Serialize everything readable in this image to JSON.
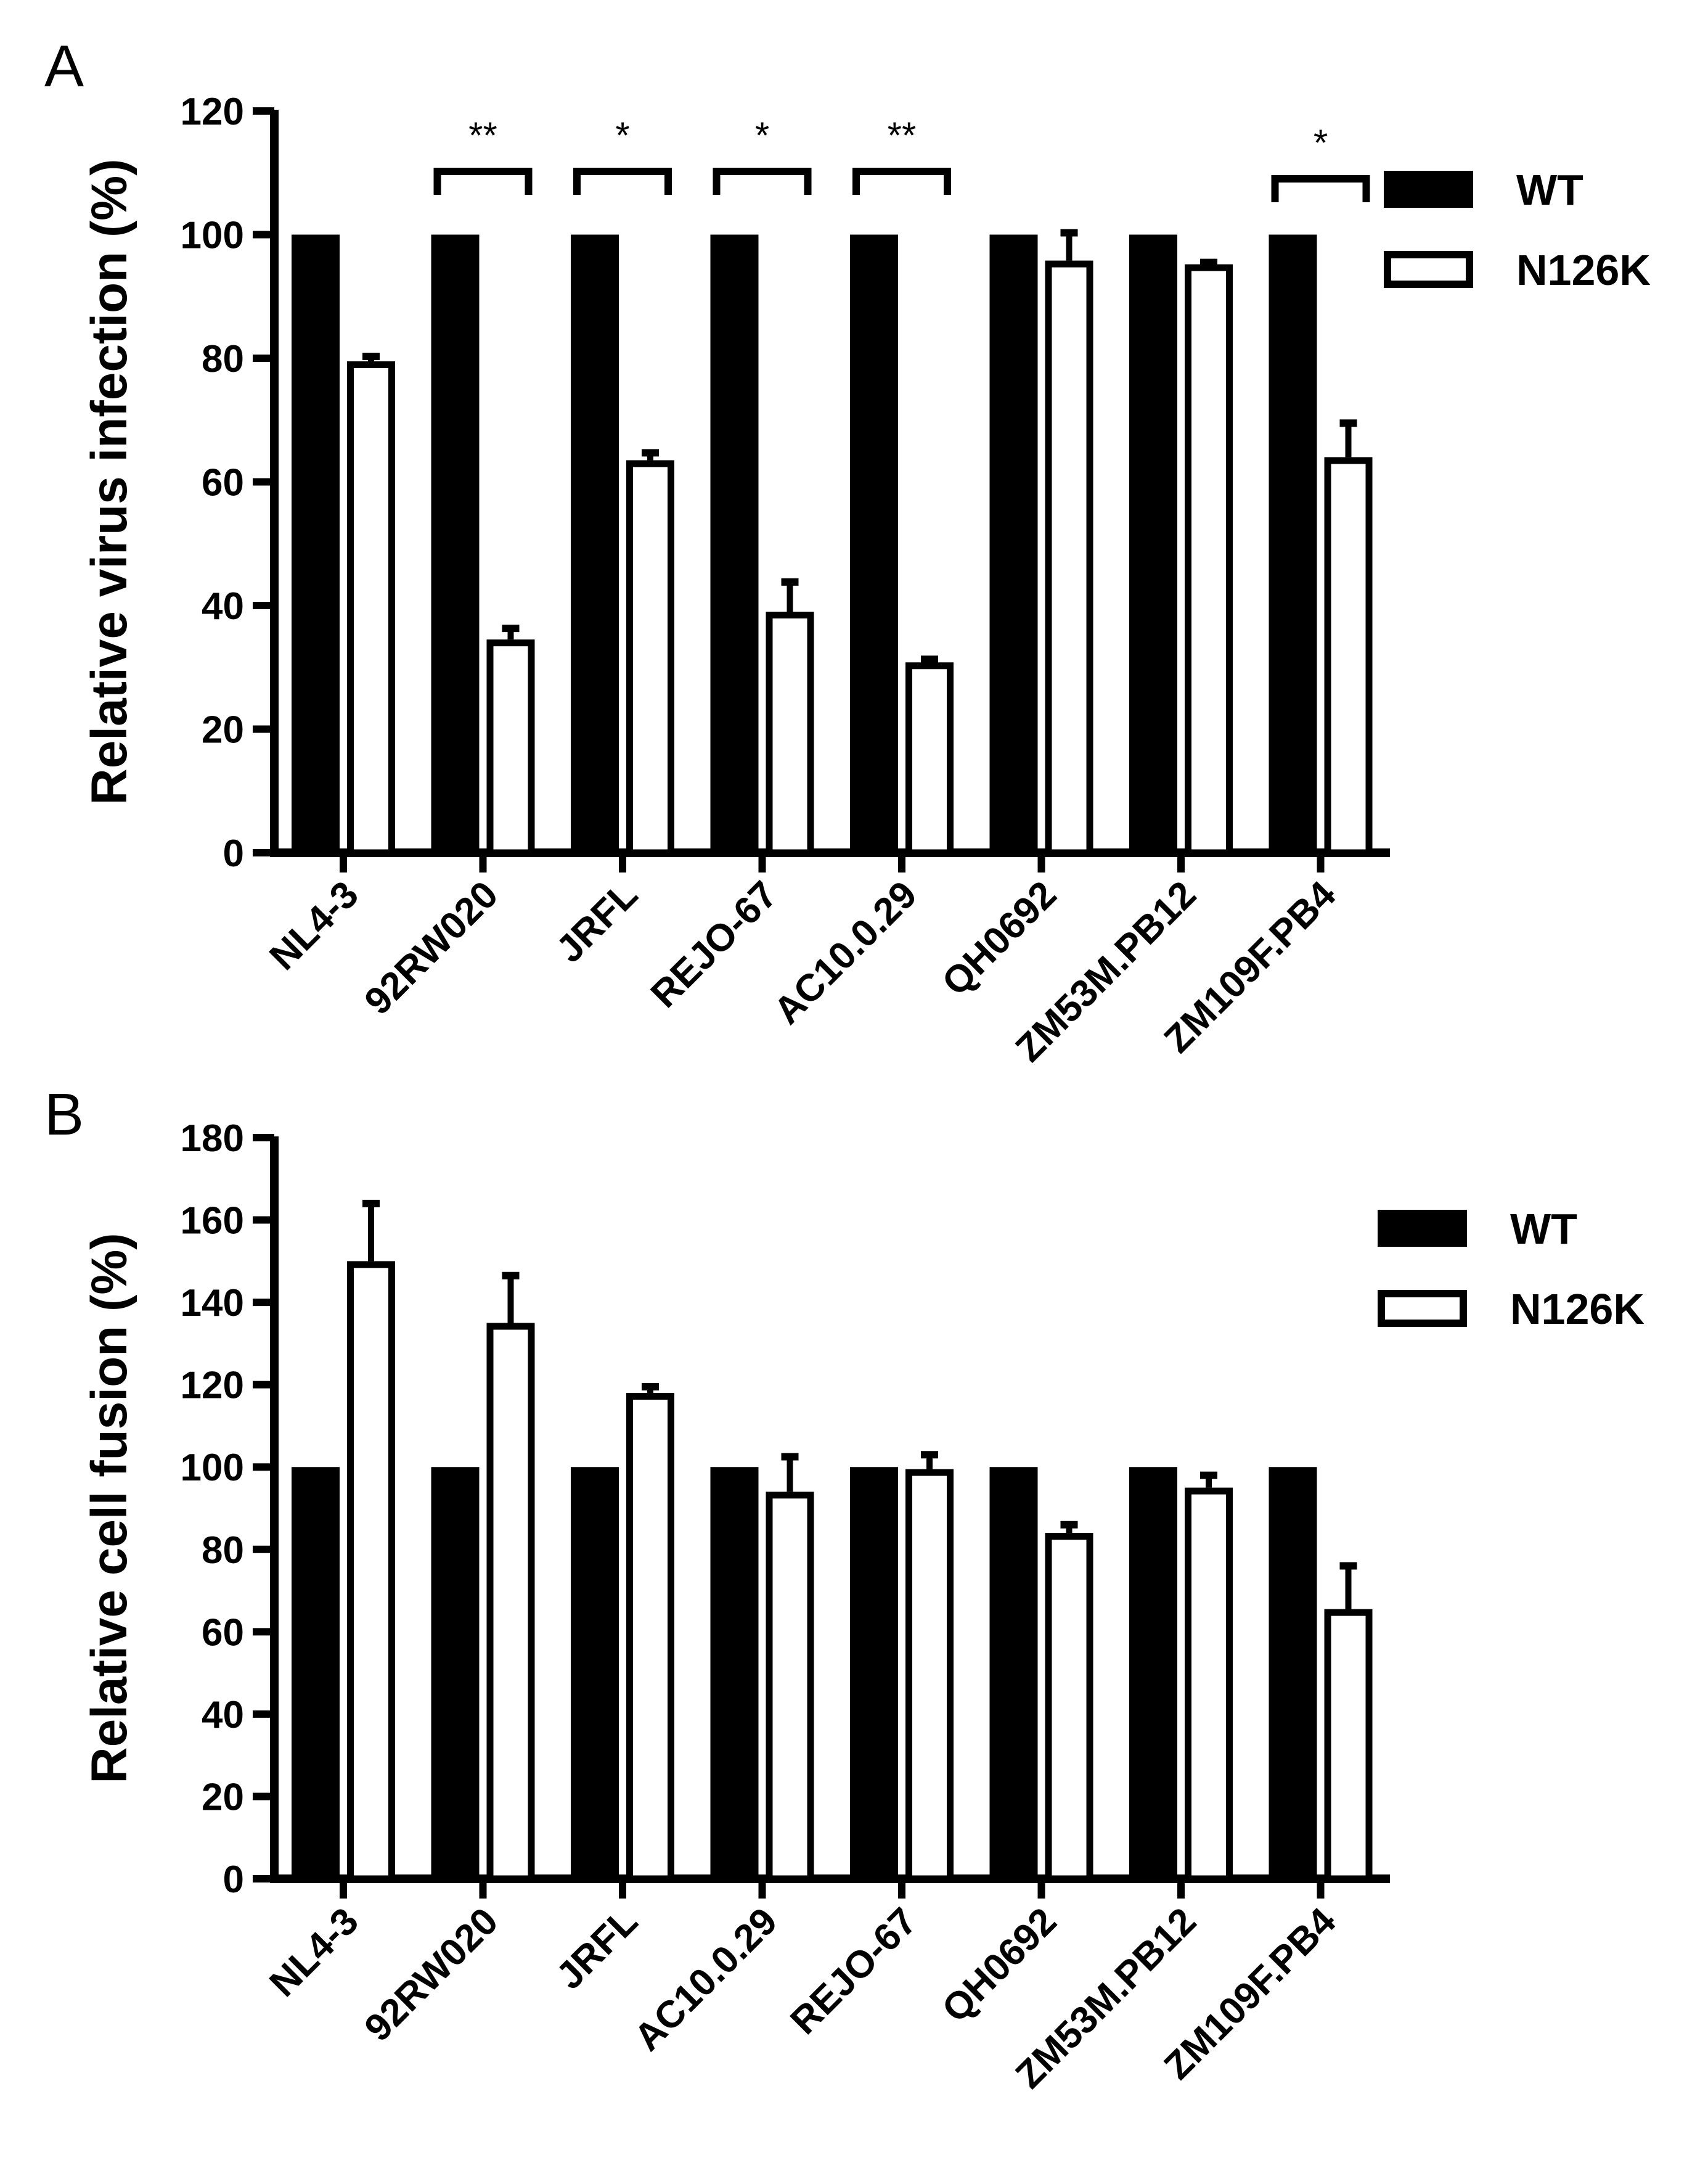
{
  "figure": {
    "panels": [
      {
        "letter": "A"
      },
      {
        "letter": "B"
      }
    ]
  },
  "chart_data": [
    {
      "type": "bar",
      "panel": "A",
      "ylabel": "Relative virus infection (%)",
      "xlabel": "",
      "ylim": [
        0,
        120
      ],
      "yticks": [
        0,
        20,
        40,
        60,
        80,
        100,
        120
      ],
      "categories": [
        "NL4-3",
        "92RW020",
        "JRFL",
        "REJO-67",
        "AC10.0.29",
        "QH0692",
        "ZM53M.PB12",
        "ZM109F.PB4"
      ],
      "series": [
        {
          "name": "WT",
          "fill": "#000000",
          "values": [
            100,
            100,
            100,
            100,
            100,
            100,
            100,
            100
          ],
          "errors": [
            0,
            0,
            0,
            0,
            0,
            0,
            0,
            0
          ]
        },
        {
          "name": "N126K",
          "fill": "#ffffff",
          "values": [
            79.5,
            34.5,
            63.5,
            39,
            30.8,
            95.8,
            95.2,
            64
          ],
          "errors": [
            0.8,
            1.8,
            1.2,
            4.8,
            0.5,
            4.5,
            0.3,
            5.5
          ]
        }
      ],
      "significance": [
        {
          "category": "92RW020",
          "label": "**"
        },
        {
          "category": "JRFL",
          "label": "*"
        },
        {
          "category": "REJO-67",
          "label": "*"
        },
        {
          "category": "AC10.0.29",
          "label": "**"
        },
        {
          "category": "ZM109F.PB4",
          "label": "*"
        }
      ],
      "legend": [
        "WT",
        "N126K"
      ],
      "legend_position": "top-right"
    },
    {
      "type": "bar",
      "panel": "B",
      "ylabel": "Relative cell fusion (%)",
      "xlabel": "",
      "ylim": [
        0,
        180
      ],
      "yticks": [
        0,
        20,
        40,
        60,
        80,
        100,
        120,
        140,
        160,
        180
      ],
      "categories": [
        "NL4-3",
        "92RW020",
        "JRFL",
        "AC10.0.29",
        "REJO-67",
        "QH0692",
        "ZM53M.PB12",
        "ZM109F.PB4"
      ],
      "series": [
        {
          "name": "WT",
          "fill": "#000000",
          "values": [
            100,
            100,
            100,
            100,
            100,
            100,
            100,
            100
          ],
          "errors": [
            0,
            0,
            0,
            0,
            0,
            0,
            0,
            0
          ]
        },
        {
          "name": "N126K",
          "fill": "#ffffff",
          "values": [
            150,
            135,
            118,
            94,
            99.5,
            84,
            95,
            65.5
          ],
          "errors": [
            14,
            11.5,
            1.5,
            8.5,
            3.5,
            2,
            3,
            10.5
          ]
        }
      ],
      "significance": [],
      "legend": [
        "WT",
        "N126K"
      ],
      "legend_position": "top-right"
    }
  ]
}
